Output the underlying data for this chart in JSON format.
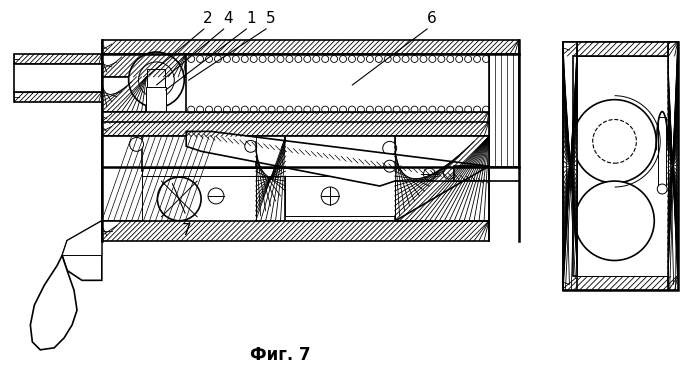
{
  "title": "Фиг. 7",
  "bg_color": "#ffffff",
  "line_color": "#000000",
  "title_fontsize": 12,
  "label_fontsize": 11
}
